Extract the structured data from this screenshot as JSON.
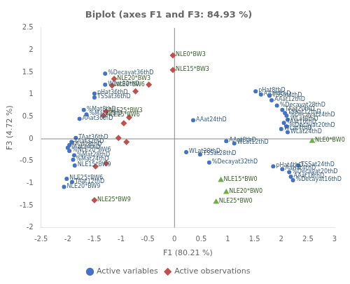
{
  "chart_data": {
    "type": "scatter",
    "title": "Biplot (axes F1 and F3: 84.93 %)",
    "xlabel": "F1 (80.21 %)",
    "ylabel": "F3 (4.72 %)",
    "xlim": [
      -2.5,
      3.0
    ],
    "ylim": [
      -2.0,
      2.5
    ],
    "xticks": [
      -2.5,
      -2,
      -1.5,
      -1,
      -0.5,
      0,
      0.5,
      1,
      1.5,
      2,
      2.5,
      3
    ],
    "yticks": [
      -2,
      -1.5,
      -1,
      -0.5,
      0,
      0.5,
      1,
      1.5,
      2,
      2.5
    ],
    "grid": false,
    "legend": "bottom",
    "hlines": [
      0
    ],
    "vlines": [
      0
    ],
    "series": [
      {
        "name": "Active variables",
        "color": "#4472C4",
        "marker": "circle",
        "label_color": "#375D81",
        "x": [
          -1.3,
          -1.3,
          -1.5,
          -1.5,
          -1.7,
          -1.65,
          -1.78,
          -1.85,
          -1.93,
          -1.97,
          -2.0,
          -1.97,
          -1.88,
          -1.9,
          -1.87,
          -2.02,
          -1.92,
          -2.07,
          0.35,
          0.22,
          0.48,
          0.65,
          0.97,
          1.12,
          1.52,
          1.62,
          1.78,
          1.82,
          1.92,
          2.02,
          2.07,
          2.1,
          2.12,
          2.05,
          2.1,
          2.0,
          2.12,
          1.85,
          2.02,
          2.15,
          2.18,
          2.22,
          2.32
        ],
        "values": [
          1.47,
          1.22,
          1.02,
          0.93,
          0.65,
          0.55,
          0.45,
          0.02,
          -0.07,
          -0.14,
          -0.2,
          -0.27,
          -0.37,
          -0.47,
          -0.6,
          -0.9,
          -0.97,
          -1.08,
          0.42,
          -0.3,
          -0.35,
          -0.53,
          -0.05,
          -0.1,
          1.07,
          1.0,
          0.97,
          0.87,
          0.75,
          0.65,
          0.58,
          0.52,
          0.43,
          0.36,
          0.28,
          0.22,
          0.15,
          -0.62,
          -0.68,
          -0.75,
          -0.85,
          -0.93,
          -0.6
        ],
        "labels": [
          "%Decayat36thD",
          "WLat32thD",
          "pHat36thD",
          "TSSat36thD",
          "%Mat8thD",
          "%Mat12thD",
          "AAat36thD",
          "TAat36thD",
          "TAat32thD",
          "TAat28thD",
          "TAat24thD",
          "%NLE20*BW6",
          "%Mat28thD",
          "%Mat24thD",
          "NLE15*BW9",
          "NLE25*BW6",
          "TAat12thD",
          "NLE20*BW9",
          "AAat24thD",
          "WLat28thD",
          "TSSat28thD",
          "%Decayat32thD",
          "AAat8thD",
          "WLat12thD",
          "pHat8thD",
          "AAat4thD",
          "TSSat4thD",
          "AAat12thD",
          "%Decayat28thD",
          "TAat20thD",
          "TSSat12thD",
          "%Decayat24thD",
          "WLat8thD",
          "TAat16thD",
          "%Decayat20thD",
          "WLat4thD",
          "WLat24thD",
          "pHat4thD",
          "AaHat4thD",
          "%Decayat20thD",
          "AAat18thD",
          "%Decayat16thD",
          "TSSat24thD"
        ]
      },
      {
        "name": "Active observations",
        "color": "#C0504D",
        "marker": "diamond",
        "label_color": "#375D28",
        "x": [
          -0.03,
          -0.03,
          -0.48,
          -0.73,
          -0.85,
          -0.95,
          -1.05,
          -0.9,
          -1.28,
          -1.48,
          -1.5,
          -1.13,
          -1.17,
          -1.28,
          -1.33
        ],
        "values": [
          1.88,
          1.55,
          1.22,
          1.07,
          0.48,
          0.35,
          0.02,
          -0.07,
          -0.55,
          -0.62,
          -1.38,
          1.35,
          1.2,
          0.62,
          0.52
        ],
        "labels": [
          "NLE0*BW3",
          "NLE15*BW3",
          null,
          null,
          null,
          null,
          null,
          null,
          null,
          null,
          "NLE25*BW9",
          "NLE20*BW3",
          "NLE0*BW6",
          "NLE25*BW3",
          "NLE25*BW6"
        ]
      },
      {
        "color": "#70AD47",
        "marker": "triangle",
        "label_color": "#375D28",
        "x": [
          2.58,
          0.87,
          0.97,
          0.78
        ],
        "values": [
          -0.05,
          -0.93,
          -1.2,
          -1.42
        ],
        "labels": [
          "NLE0*BW0",
          "NLE15*BW0",
          "NLE20*BW0",
          "NLE25*BW0"
        ]
      }
    ]
  }
}
